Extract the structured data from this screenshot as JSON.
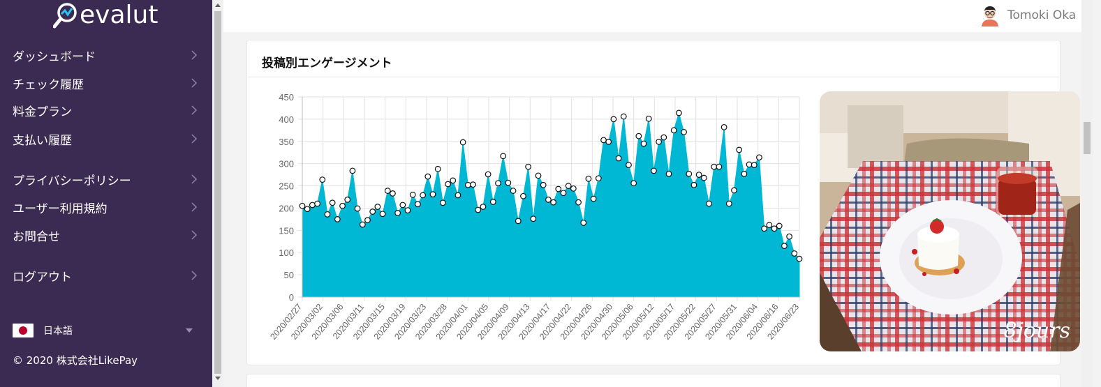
{
  "app": {
    "logo_text": "evalut"
  },
  "sidebar": {
    "items": [
      {
        "label": "ダッシュボード"
      },
      {
        "label": "チェック履歴"
      },
      {
        "label": "料金プラン"
      },
      {
        "label": "支払い履歴"
      },
      {
        "label": "プライバシーポリシー"
      },
      {
        "label": "ユーザー利用規約"
      },
      {
        "label": "お問合せ"
      },
      {
        "label": "ログアウト"
      }
    ],
    "language": {
      "label": "日本語",
      "flag_icon": "japan-flag-icon"
    },
    "copyright": "© 2020 株式会社LikePay"
  },
  "header": {
    "user_name": "Tomoki Oka"
  },
  "card": {
    "title": "投稿別エンゲージメント"
  },
  "photo": {
    "caption": "8jours"
  },
  "colors": {
    "sidebar_bg": "#3b2a52",
    "area_fill": "#00b8d4"
  },
  "chart_data": {
    "type": "area",
    "ylim": [
      0,
      450
    ],
    "yticks": [
      0,
      50,
      100,
      150,
      200,
      250,
      300,
      350,
      400,
      450
    ],
    "xtick_labels": [
      "2020/02/27",
      "2020/03/02",
      "2020/03/06",
      "2020/03/11",
      "2020/03/15",
      "2020/03/19",
      "2020/03/23",
      "2020/03/28",
      "2020/04/01",
      "2020/04/05",
      "2020/04/09",
      "2020/04/13",
      "2020/04/17",
      "2020/04/22",
      "2020/04/26",
      "2020/04/30",
      "2020/05/06",
      "2020/05/12",
      "2020/05/17",
      "2020/05/22",
      "2020/05/27",
      "2020/05/31",
      "2020/06/04",
      "2020/06/16",
      "2020/06/23"
    ],
    "grid": true,
    "values": [
      205,
      198,
      207,
      210,
      264,
      186,
      212,
      175,
      205,
      219,
      284,
      199,
      163,
      173,
      192,
      203,
      187,
      239,
      233,
      189,
      207,
      195,
      230,
      209,
      229,
      271,
      231,
      288,
      212,
      254,
      262,
      229,
      348,
      252,
      253,
      196,
      203,
      276,
      214,
      256,
      317,
      257,
      239,
      171,
      227,
      293,
      176,
      273,
      252,
      219,
      213,
      243,
      234,
      250,
      244,
      213,
      167,
      266,
      221,
      267,
      353,
      349,
      400,
      312,
      406,
      297,
      256,
      362,
      345,
      401,
      284,
      349,
      359,
      277,
      375,
      414,
      371,
      277,
      252,
      275,
      268,
      210,
      293,
      293,
      382,
      210,
      240,
      331,
      277,
      298,
      297,
      314,
      154,
      162,
      154,
      160,
      115,
      136,
      98,
      86
    ]
  }
}
